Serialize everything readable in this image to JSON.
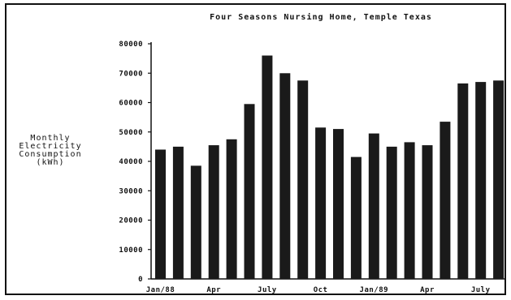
{
  "chart_data": {
    "type": "bar",
    "title": "Four Seasons Nursing Home, Temple Texas",
    "ylabel_lines": [
      "Monthly",
      "Electricity",
      "Consumption",
      "(kWh)"
    ],
    "xlabel": "",
    "ylim": [
      0,
      80000
    ],
    "yticks": [
      0,
      10000,
      20000,
      30000,
      40000,
      50000,
      60000,
      70000,
      80000
    ],
    "ytick_labels": [
      "0",
      "10000",
      "20000",
      "30000",
      "40000",
      "50000",
      "60000",
      "70000",
      "80000"
    ],
    "x_tick_labels": [
      {
        "index": 0,
        "label": "Jan/88"
      },
      {
        "index": 3,
        "label": "Apr"
      },
      {
        "index": 6,
        "label": "July"
      },
      {
        "index": 9,
        "label": "Oct"
      },
      {
        "index": 12,
        "label": "Jan/89"
      },
      {
        "index": 15,
        "label": "Apr"
      },
      {
        "index": 18,
        "label": "July"
      }
    ],
    "values": [
      44000,
      45000,
      38500,
      45500,
      47500,
      59500,
      76000,
      70000,
      67500,
      51500,
      51000,
      41500,
      49500,
      45000,
      46500,
      45500,
      53500,
      66500,
      67000,
      67500
    ],
    "bar_color": "#1a1a1a",
    "grid": false,
    "legend": "none"
  }
}
